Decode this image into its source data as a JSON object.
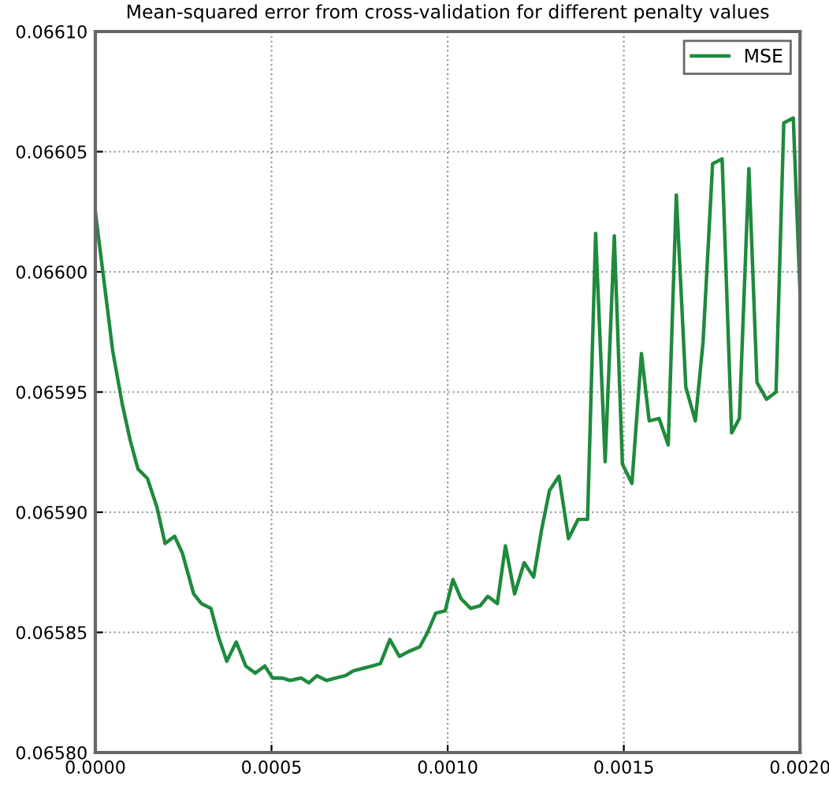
{
  "chart_data": {
    "type": "line",
    "title": "Mean-squared error from cross-validation for different penalty values",
    "x": [
      0.0,
      4.94e-05,
      7.64e-05,
      9.88e-05,
      0.000121,
      0.000148,
      0.000175,
      0.000198,
      0.000225,
      0.000247,
      0.000279,
      0.000301,
      0.000328,
      0.00035,
      0.000373,
      0.0004,
      0.000427,
      0.000454,
      0.000481,
      0.000503,
      0.00053,
      0.000553,
      0.000584,
      0.000606,
      0.000629,
      0.000656,
      0.000683,
      0.00071,
      0.000732,
      0.000759,
      0.000786,
      0.000809,
      0.000836,
      0.000863,
      0.000889,
      0.000921,
      0.000943,
      0.000966,
      0.000993,
      0.001015,
      0.001038,
      0.001065,
      0.001092,
      0.001114,
      0.001141,
      0.001164,
      0.00119,
      0.001217,
      0.001244,
      0.001267,
      0.001289,
      0.001316,
      0.001343,
      0.00137,
      0.001397,
      0.00142,
      0.001447,
      0.001473,
      0.001496,
      0.001523,
      0.00155,
      0.001572,
      0.0016,
      0.001626,
      0.001649,
      0.001676,
      0.001703,
      0.001725,
      0.001752,
      0.001779,
      0.001806,
      0.001828,
      0.001855,
      0.001878,
      0.001905,
      0.001932,
      0.001954,
      0.001981,
      0.002
    ],
    "series": [
      {
        "name": "MSE",
        "color": "#1f8a3c",
        "values": [
          0.066025,
          0.065967,
          0.065945,
          0.06593,
          0.065918,
          0.065914,
          0.065902,
          0.065887,
          0.06589,
          0.065883,
          0.065866,
          0.065862,
          0.06586,
          0.065848,
          0.065838,
          0.065846,
          0.065836,
          0.065833,
          0.065836,
          0.065831,
          0.065831,
          0.06583,
          0.065831,
          0.065829,
          0.065832,
          0.06583,
          0.065831,
          0.065832,
          0.065834,
          0.065835,
          0.065836,
          0.065837,
          0.065847,
          0.06584,
          0.065842,
          0.065844,
          0.06585,
          0.065858,
          0.065859,
          0.065872,
          0.065864,
          0.06586,
          0.065861,
          0.065865,
          0.065862,
          0.065886,
          0.065866,
          0.065879,
          0.065873,
          0.065893,
          0.065909,
          0.065915,
          0.065889,
          0.065897,
          0.065897,
          0.066016,
          0.065921,
          0.066015,
          0.06592,
          0.065912,
          0.065966,
          0.065938,
          0.065939,
          0.065928,
          0.066032,
          0.065952,
          0.065938,
          0.065971,
          0.066045,
          0.066047,
          0.065933,
          0.065939,
          0.066043,
          0.065954,
          0.065947,
          0.06595,
          0.066062,
          0.066064,
          0.065992
        ]
      }
    ],
    "xlim": [
      0.0,
      0.002
    ],
    "xticks": [
      {
        "value": 0.0,
        "label": "0.0000"
      },
      {
        "value": 0.0005,
        "label": "0.0005"
      },
      {
        "value": 0.001,
        "label": "0.0010"
      },
      {
        "value": 0.0015,
        "label": "0.0015"
      },
      {
        "value": 0.002,
        "label": "0.0020"
      }
    ],
    "ylim": [
      0.0658,
      0.0661
    ],
    "yticks": [
      {
        "value": 0.0658,
        "label": "0.06580"
      },
      {
        "value": 0.06585,
        "label": "0.06585"
      },
      {
        "value": 0.0659,
        "label": "0.06590"
      },
      {
        "value": 0.06595,
        "label": "0.06595"
      },
      {
        "value": 0.066,
        "label": "0.06600"
      },
      {
        "value": 0.06605,
        "label": "0.06605"
      },
      {
        "value": 0.0661,
        "label": "0.06610"
      }
    ],
    "grid": true,
    "legend": "top right",
    "line_style": "solid"
  }
}
